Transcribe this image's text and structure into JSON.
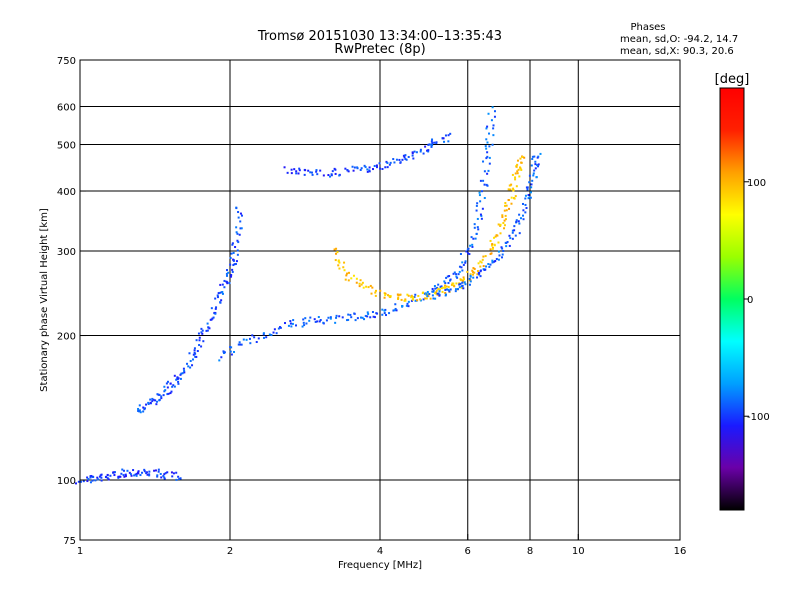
{
  "chart_data": {
    "type": "scatter",
    "title": "Tromsø 20151030 13:34:00–13:35:43",
    "subtitle": "RwPretec (8p)",
    "xlabel": "Frequency [MHz]",
    "ylabel": "Stationary phase Virtual Height [km]",
    "x_scale": "log",
    "y_scale": "log",
    "xlim": [
      1,
      16
    ],
    "ylim": [
      75,
      750
    ],
    "x_ticks": [
      1,
      2,
      4,
      6,
      8,
      10,
      16
    ],
    "y_ticks": [
      75,
      100,
      200,
      300,
      400,
      500,
      600,
      750
    ],
    "grid": true,
    "legend": {
      "heading": "Phases",
      "line_o": "mean, sd,O: -94.2, 14.7",
      "line_x": "mean, sd,X:  90.3, 20.6",
      "placement": "top-right"
    },
    "colorbar": {
      "label": "[deg]",
      "range": [
        -180,
        180
      ],
      "ticks": [
        100,
        0,
        -100
      ],
      "colormap": [
        "#000000",
        "#6a00a8",
        "#1a1aff",
        "#00a0ff",
        "#00ffff",
        "#00ff60",
        "#9aff00",
        "#ffff00",
        "#ffa000",
        "#ff2000",
        "#ff0000"
      ]
    },
    "traces": [
      {
        "name": "",
        "phase": -100,
        "points": [
          [
            1.0,
            100
          ],
          [
            1.1,
            101
          ],
          [
            1.2,
            103
          ],
          [
            1.3,
            104
          ],
          [
            1.45,
            103
          ],
          [
            1.6,
            101
          ]
        ]
      },
      {
        "name": "",
        "phase": -95,
        "points": [
          [
            1.3,
            140
          ],
          [
            1.4,
            145
          ],
          [
            1.5,
            155
          ],
          [
            1.6,
            165
          ],
          [
            1.7,
            185
          ],
          [
            1.8,
            210
          ],
          [
            1.9,
            240
          ],
          [
            2.0,
            270
          ],
          [
            2.05,
            300
          ],
          [
            2.1,
            380
          ]
        ]
      },
      {
        "name": "",
        "phase": -90,
        "points": [
          [
            1.9,
            180
          ],
          [
            2.2,
            195
          ],
          [
            2.6,
            210
          ],
          [
            3.0,
            215
          ],
          [
            3.5,
            218
          ],
          [
            4.0,
            222
          ],
          [
            4.6,
            235
          ],
          [
            5.2,
            250
          ],
          [
            5.7,
            270
          ],
          [
            6.1,
            310
          ],
          [
            6.4,
            380
          ],
          [
            6.6,
            480
          ],
          [
            6.7,
            600
          ]
        ]
      },
      {
        "name": "",
        "phase": -98,
        "points": [
          [
            2.6,
            440
          ],
          [
            3.0,
            435
          ],
          [
            3.5,
            440
          ],
          [
            4.0,
            450
          ],
          [
            4.5,
            470
          ],
          [
            5.0,
            495
          ],
          [
            5.5,
            520
          ]
        ]
      },
      {
        "name": "",
        "phase": 95,
        "points": [
          [
            3.2,
            300
          ],
          [
            3.5,
            262
          ],
          [
            4.0,
            245
          ],
          [
            4.5,
            240
          ],
          [
            5.0,
            242
          ],
          [
            5.5,
            250
          ],
          [
            6.0,
            262
          ],
          [
            6.5,
            290
          ],
          [
            7.0,
            330
          ],
          [
            7.3,
            380
          ],
          [
            7.5,
            430
          ],
          [
            7.7,
            480
          ]
        ]
      },
      {
        "name": "",
        "phase": -90,
        "points": [
          [
            5.0,
            240
          ],
          [
            5.6,
            250
          ],
          [
            6.2,
            265
          ],
          [
            6.8,
            285
          ],
          [
            7.4,
            320
          ],
          [
            7.8,
            370
          ],
          [
            8.1,
            430
          ],
          [
            8.3,
            480
          ]
        ]
      }
    ]
  }
}
